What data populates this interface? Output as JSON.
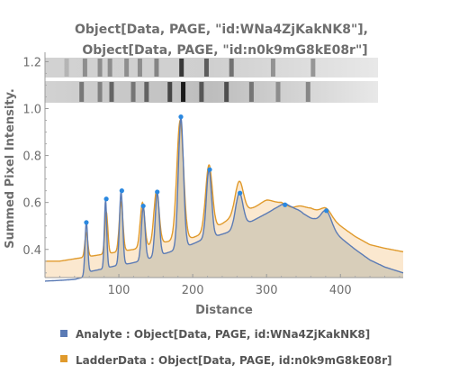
{
  "chart_data": {
    "type": "area",
    "title_lines": [
      "Object[Data, PAGE, \"id:WNa4ZjKakNK8\"],",
      "Object[Data, PAGE, \"id:n0k9mG8kE08r\"]"
    ],
    "xlabel": "Distance",
    "ylabel": "Summed Pixel Intensity.",
    "xlim": [
      0,
      485
    ],
    "ylim": [
      0.28,
      1.24
    ],
    "xticks": [
      100,
      200,
      300,
      400
    ],
    "yticks": [
      0.4,
      0.6,
      0.8,
      1.0,
      1.2
    ],
    "ytick_labels": [
      "0.4",
      "0.6",
      "0.8",
      "1.0",
      "1.2"
    ],
    "series": [
      {
        "name": "Analyte : Object[Data, PAGE, id:WNa4ZjKakNK8]",
        "color": "#5b7bb5",
        "fill": "#d6ccb8",
        "baseline": [
          [
            0,
            0.265
          ],
          [
            20,
            0.268
          ],
          [
            40,
            0.272
          ],
          [
            50,
            0.28
          ],
          [
            60,
            0.305
          ],
          [
            75,
            0.315
          ],
          [
            95,
            0.33
          ],
          [
            115,
            0.34
          ],
          [
            135,
            0.355
          ],
          [
            155,
            0.375
          ],
          [
            170,
            0.39
          ],
          [
            190,
            0.41
          ],
          [
            205,
            0.43
          ],
          [
            215,
            0.445
          ],
          [
            235,
            0.46
          ],
          [
            250,
            0.475
          ],
          [
            265,
            0.5
          ],
          [
            280,
            0.52
          ],
          [
            295,
            0.545
          ],
          [
            310,
            0.57
          ],
          [
            325,
            0.585
          ],
          [
            335,
            0.57
          ],
          [
            350,
            0.535
          ],
          [
            365,
            0.525
          ],
          [
            380,
            0.5
          ],
          [
            400,
            0.45
          ],
          [
            420,
            0.4
          ],
          [
            440,
            0.355
          ],
          [
            460,
            0.325
          ],
          [
            485,
            0.3
          ]
        ],
        "peaks": [
          [
            56,
            0.515,
            1.8
          ],
          [
            82,
            0.61,
            1.6
          ],
          [
            103,
            0.645,
            2.2
          ],
          [
            133,
            0.58,
            2.5
          ],
          [
            152,
            0.64,
            2.8
          ],
          [
            184,
            0.96,
            3.5
          ],
          [
            222,
            0.74,
            3.5
          ],
          [
            263,
            0.64,
            5
          ],
          [
            324,
            0.595,
            8
          ],
          [
            347,
            0.56,
            8
          ],
          [
            381,
            0.565,
            7
          ]
        ],
        "markers": [
          [
            56,
            0.515
          ],
          [
            83,
            0.615
          ],
          [
            104,
            0.65
          ],
          [
            133,
            0.585
          ],
          [
            152,
            0.645
          ],
          [
            184,
            0.965
          ],
          [
            223,
            0.74
          ],
          [
            264,
            0.64
          ],
          [
            325,
            0.59
          ],
          [
            381,
            0.565
          ]
        ]
      },
      {
        "name": "LadderData : Object[Data, PAGE, id:n0k9mG8kE08r]",
        "color": "#e09a2c",
        "fill": "#fbe8cf",
        "baseline": [
          [
            0,
            0.35
          ],
          [
            20,
            0.35
          ],
          [
            40,
            0.36
          ],
          [
            60,
            0.37
          ],
          [
            80,
            0.38
          ],
          [
            100,
            0.39
          ],
          [
            120,
            0.4
          ],
          [
            140,
            0.415
          ],
          [
            160,
            0.43
          ],
          [
            180,
            0.44
          ],
          [
            200,
            0.45
          ],
          [
            220,
            0.475
          ],
          [
            240,
            0.51
          ],
          [
            260,
            0.55
          ],
          [
            280,
            0.575
          ],
          [
            300,
            0.595
          ],
          [
            320,
            0.6
          ],
          [
            335,
            0.575
          ],
          [
            345,
            0.575
          ],
          [
            360,
            0.575
          ],
          [
            380,
            0.545
          ],
          [
            400,
            0.5
          ],
          [
            420,
            0.455
          ],
          [
            440,
            0.42
          ],
          [
            460,
            0.405
          ],
          [
            485,
            0.39
          ]
        ],
        "peaks": [
          [
            56,
            0.47,
            2
          ],
          [
            83,
            0.56,
            2
          ],
          [
            103,
            0.6,
            2.5
          ],
          [
            132,
            0.6,
            3
          ],
          [
            151,
            0.65,
            3.5
          ],
          [
            183,
            0.95,
            4.5
          ],
          [
            222,
            0.76,
            4.5
          ],
          [
            263,
            0.69,
            5.5
          ],
          [
            300,
            0.61,
            8
          ],
          [
            345,
            0.585,
            7
          ],
          [
            381,
            0.575,
            7
          ]
        ]
      }
    ],
    "legend_position": "bottom"
  },
  "legend": {
    "analyte": "Analyte : Object[Data, PAGE, id:WNa4ZjKakNK8]",
    "ladder": "LadderData : Object[Data, PAGE, id:n0k9mG8kE08r]"
  },
  "gel_bands": {
    "lane1": [
      [
        0.065,
        0.15
      ],
      [
        0.12,
        0.35
      ],
      [
        0.165,
        0.35
      ],
      [
        0.195,
        0.35
      ],
      [
        0.245,
        0.35
      ],
      [
        0.285,
        0.35
      ],
      [
        0.335,
        0.4
      ],
      [
        0.41,
        0.8
      ],
      [
        0.485,
        0.6
      ],
      [
        0.56,
        0.5
      ],
      [
        0.685,
        0.35
      ],
      [
        0.805,
        0.35
      ]
    ],
    "lane2": [
      [
        0.11,
        0.45
      ],
      [
        0.165,
        0.4
      ],
      [
        0.2,
        0.55
      ],
      [
        0.265,
        0.45
      ],
      [
        0.305,
        0.55
      ],
      [
        0.375,
        0.7
      ],
      [
        0.415,
        0.95
      ],
      [
        0.47,
        0.6
      ],
      [
        0.545,
        0.65
      ],
      [
        0.62,
        0.45
      ],
      [
        0.7,
        0.35
      ],
      [
        0.79,
        0.4
      ]
    ]
  }
}
